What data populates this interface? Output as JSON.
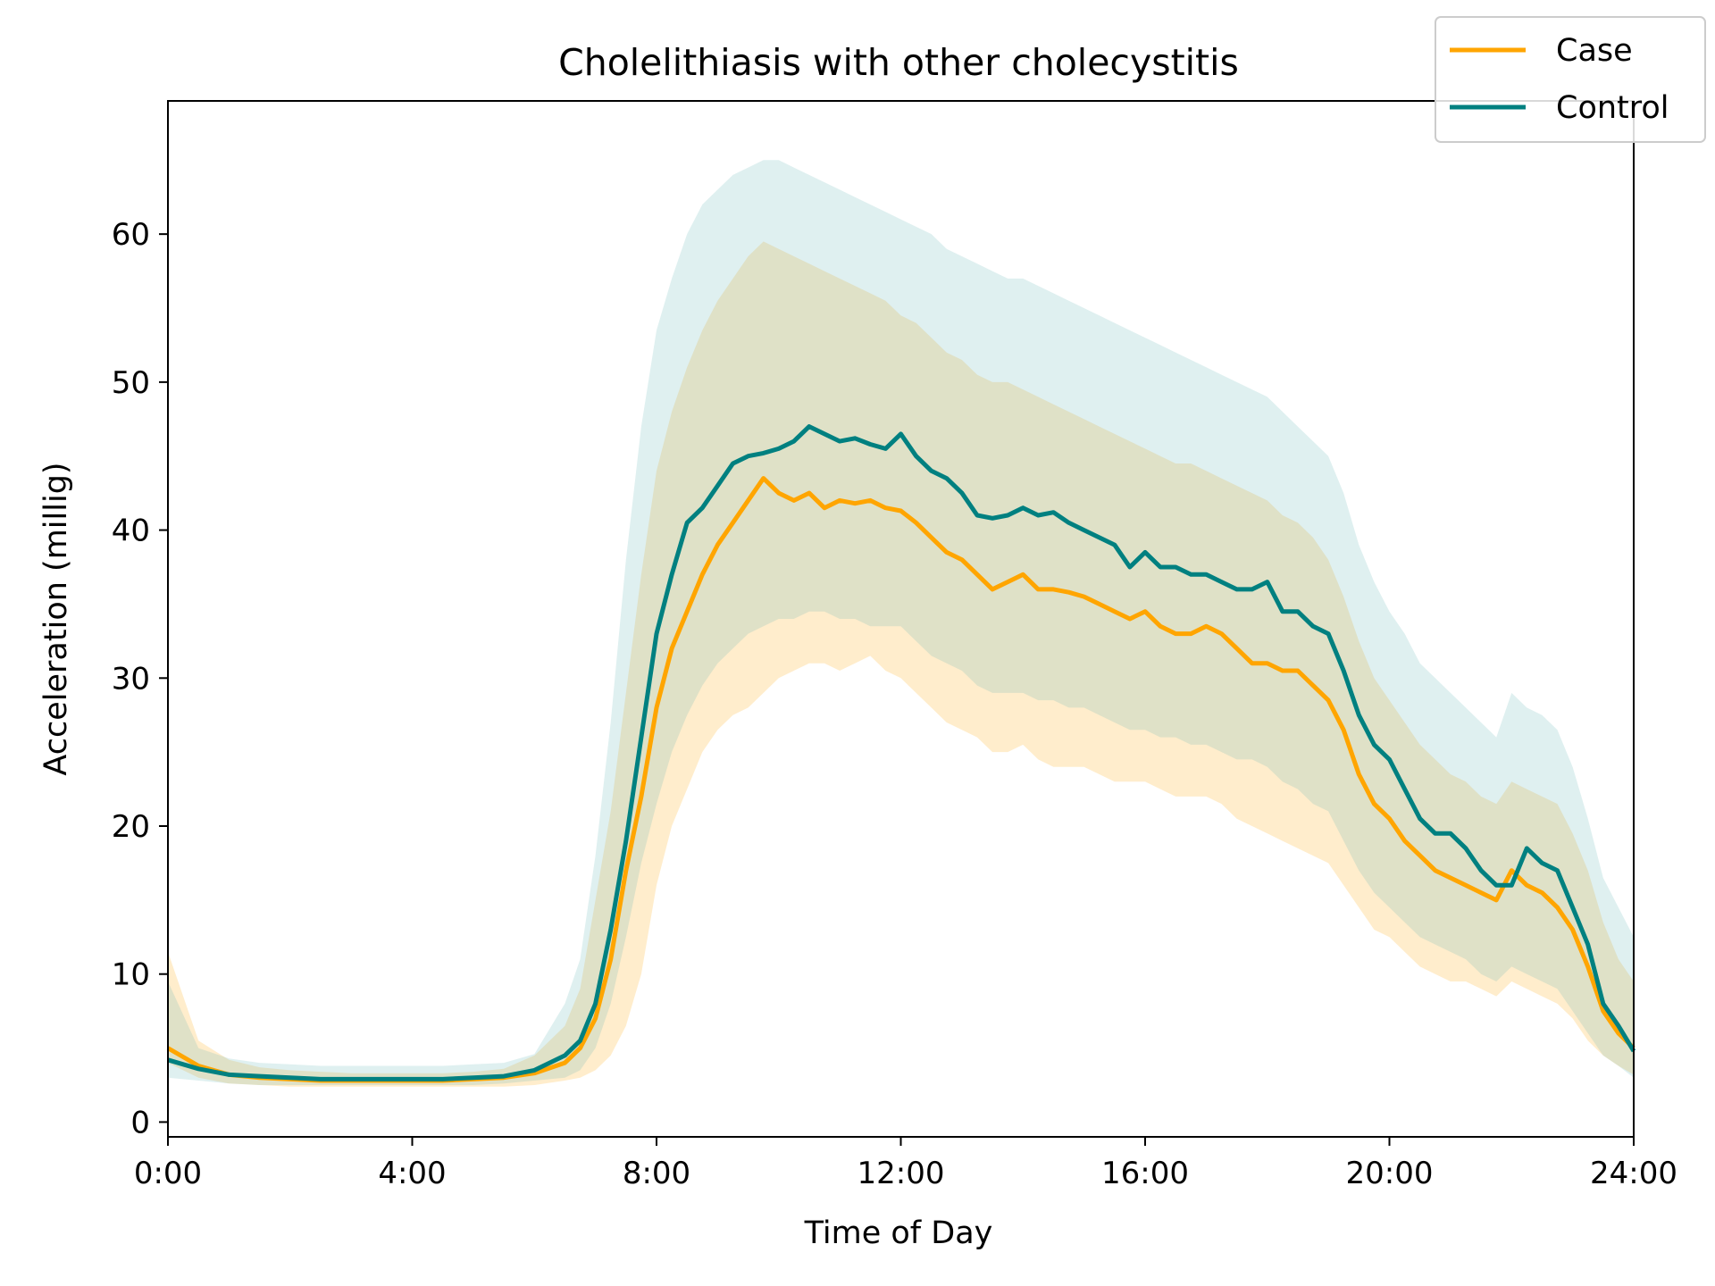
{
  "chart_data": {
    "type": "line",
    "title": "Cholelithiasis with other cholecystitis",
    "xlabel": "Time of Day",
    "ylabel": "Acceleration (millig)",
    "xlim": [
      0,
      24
    ],
    "ylim": [
      -1,
      69
    ],
    "x_ticks": [
      {
        "value": 0,
        "label": "0:00"
      },
      {
        "value": 4,
        "label": "4:00"
      },
      {
        "value": 8,
        "label": "8:00"
      },
      {
        "value": 12,
        "label": "12:00"
      },
      {
        "value": 16,
        "label": "16:00"
      },
      {
        "value": 20,
        "label": "20:00"
      },
      {
        "value": 24,
        "label": "24:00"
      }
    ],
    "y_ticks": [
      {
        "value": 0,
        "label": "0"
      },
      {
        "value": 10,
        "label": "10"
      },
      {
        "value": 20,
        "label": "20"
      },
      {
        "value": 30,
        "label": "30"
      },
      {
        "value": 40,
        "label": "40"
      },
      {
        "value": 50,
        "label": "50"
      },
      {
        "value": 60,
        "label": "60"
      }
    ],
    "grid": false,
    "legend_position": "top-right",
    "x": [
      0,
      0.5,
      1,
      1.5,
      2,
      2.5,
      3,
      3.5,
      4,
      4.5,
      5,
      5.5,
      6,
      6.5,
      6.75,
      7,
      7.25,
      7.5,
      7.75,
      8,
      8.25,
      8.5,
      8.75,
      9,
      9.25,
      9.5,
      9.75,
      10,
      10.25,
      10.5,
      10.75,
      11,
      11.25,
      11.5,
      11.75,
      12,
      12.25,
      12.5,
      12.75,
      13,
      13.25,
      13.5,
      13.75,
      14,
      14.25,
      14.5,
      14.75,
      15,
      15.25,
      15.5,
      15.75,
      16,
      16.25,
      16.5,
      16.75,
      17,
      17.25,
      17.5,
      17.75,
      18,
      18.25,
      18.5,
      18.75,
      19,
      19.25,
      19.5,
      19.75,
      20,
      20.25,
      20.5,
      20.75,
      21,
      21.25,
      21.5,
      21.75,
      22,
      22.25,
      22.5,
      22.75,
      23,
      23.25,
      23.5,
      23.75,
      24
    ],
    "series": [
      {
        "name": "Case",
        "color": "#ffa500",
        "band_color": "#ffa500",
        "values": [
          5.0,
          3.8,
          3.2,
          3.0,
          2.9,
          2.8,
          2.8,
          2.8,
          2.8,
          2.8,
          2.9,
          3.0,
          3.3,
          4.0,
          5.0,
          7.0,
          11.0,
          17.0,
          22.0,
          28.0,
          32.0,
          34.5,
          37.0,
          39.0,
          40.5,
          42.0,
          43.5,
          42.5,
          42.0,
          42.5,
          41.5,
          42.0,
          41.8,
          42.0,
          41.5,
          41.3,
          40.5,
          39.5,
          38.5,
          38.0,
          37.0,
          36.0,
          36.5,
          37.0,
          36.0,
          36.0,
          35.8,
          35.5,
          35.0,
          34.5,
          34.0,
          34.5,
          33.5,
          33.0,
          33.0,
          33.5,
          33.0,
          32.0,
          31.0,
          31.0,
          30.5,
          30.5,
          29.5,
          28.5,
          26.5,
          23.5,
          21.5,
          20.5,
          19.0,
          18.0,
          17.0,
          16.5,
          16.0,
          15.5,
          15.0,
          17.0,
          16.0,
          15.5,
          14.5,
          13.0,
          10.5,
          7.5,
          6.0,
          5.0
        ]
      },
      {
        "name": "Control",
        "color": "#008080",
        "band_color": "#5fb3b3",
        "values": [
          4.2,
          3.6,
          3.2,
          3.1,
          3.0,
          2.9,
          2.9,
          2.9,
          2.9,
          2.9,
          3.0,
          3.1,
          3.5,
          4.5,
          5.5,
          8.0,
          13.0,
          19.0,
          26.0,
          33.0,
          37.0,
          40.5,
          41.5,
          43.0,
          44.5,
          45.0,
          45.2,
          45.5,
          46.0,
          47.0,
          46.5,
          46.0,
          46.2,
          45.8,
          45.5,
          46.5,
          45.0,
          44.0,
          43.5,
          42.5,
          41.0,
          40.8,
          41.0,
          41.5,
          41.0,
          41.2,
          40.5,
          40.0,
          39.5,
          39.0,
          37.5,
          38.5,
          37.5,
          37.5,
          37.0,
          37.0,
          36.5,
          36.0,
          36.0,
          36.5,
          34.5,
          34.5,
          33.5,
          33.0,
          30.5,
          27.5,
          25.5,
          24.5,
          22.5,
          20.5,
          19.5,
          19.5,
          18.5,
          17.0,
          16.0,
          16.0,
          18.5,
          17.5,
          17.0,
          14.5,
          12.0,
          8.0,
          6.5,
          4.8
        ]
      }
    ],
    "bands": [
      {
        "series": "Case",
        "lower": [
          4.0,
          3.0,
          2.6,
          2.5,
          2.4,
          2.4,
          2.4,
          2.4,
          2.4,
          2.4,
          2.4,
          2.4,
          2.5,
          2.8,
          3.0,
          3.5,
          4.5,
          6.5,
          10.0,
          16.0,
          20.0,
          22.5,
          25.0,
          26.5,
          27.5,
          28.0,
          29.0,
          30.0,
          30.5,
          31.0,
          31.0,
          30.5,
          31.0,
          31.5,
          30.5,
          30.0,
          29.0,
          28.0,
          27.0,
          26.5,
          26.0,
          25.0,
          25.0,
          25.5,
          24.5,
          24.0,
          24.0,
          24.0,
          23.5,
          23.0,
          23.0,
          23.0,
          22.5,
          22.0,
          22.0,
          22.0,
          21.5,
          20.5,
          20.0,
          19.5,
          19.0,
          18.5,
          18.0,
          17.5,
          16.0,
          14.5,
          13.0,
          12.5,
          11.5,
          10.5,
          10.0,
          9.5,
          9.5,
          9.0,
          8.5,
          9.5,
          9.0,
          8.5,
          8.0,
          7.0,
          5.5,
          4.5,
          3.8,
          3.2
        ],
        "upper": [
          11.5,
          5.5,
          4.2,
          3.7,
          3.5,
          3.4,
          3.3,
          3.3,
          3.3,
          3.3,
          3.4,
          3.6,
          4.5,
          6.5,
          9.0,
          15.0,
          21.0,
          29.0,
          37.0,
          44.0,
          48.0,
          51.0,
          53.5,
          55.5,
          57.0,
          58.5,
          59.5,
          59.0,
          58.5,
          58.0,
          57.5,
          57.0,
          56.5,
          56.0,
          55.5,
          54.5,
          54.0,
          53.0,
          52.0,
          51.5,
          50.5,
          50.0,
          50.0,
          49.5,
          49.0,
          48.5,
          48.0,
          47.5,
          47.0,
          46.5,
          46.0,
          45.5,
          45.0,
          44.5,
          44.5,
          44.0,
          43.5,
          43.0,
          42.5,
          42.0,
          41.0,
          40.5,
          39.5,
          38.0,
          35.5,
          32.5,
          30.0,
          28.5,
          27.0,
          25.5,
          24.5,
          23.5,
          23.0,
          22.0,
          21.5,
          23.0,
          22.5,
          22.0,
          21.5,
          19.5,
          17.0,
          13.5,
          11.0,
          9.5
        ]
      },
      {
        "series": "Control",
        "lower": [
          3.0,
          2.8,
          2.6,
          2.5,
          2.5,
          2.5,
          2.5,
          2.5,
          2.5,
          2.5,
          2.5,
          2.6,
          2.8,
          3.0,
          3.5,
          5.0,
          8.0,
          12.5,
          17.5,
          21.5,
          25.0,
          27.5,
          29.5,
          31.0,
          32.0,
          33.0,
          33.5,
          34.0,
          34.0,
          34.5,
          34.5,
          34.0,
          34.0,
          33.5,
          33.5,
          33.5,
          32.5,
          31.5,
          31.0,
          30.5,
          29.5,
          29.0,
          29.0,
          29.0,
          28.5,
          28.5,
          28.0,
          28.0,
          27.5,
          27.0,
          26.5,
          26.5,
          26.0,
          26.0,
          25.5,
          25.5,
          25.0,
          24.5,
          24.5,
          24.0,
          23.0,
          22.5,
          21.5,
          21.0,
          19.0,
          17.0,
          15.5,
          14.5,
          13.5,
          12.5,
          12.0,
          11.5,
          11.0,
          10.0,
          9.5,
          10.5,
          10.0,
          9.5,
          9.0,
          7.5,
          6.0,
          4.5,
          3.8,
          3.0
        ],
        "upper": [
          9.5,
          5.0,
          4.3,
          4.0,
          3.9,
          3.8,
          3.8,
          3.8,
          3.8,
          3.8,
          3.9,
          4.0,
          4.6,
          8.0,
          11.0,
          18.0,
          27.0,
          38.0,
          47.0,
          53.5,
          57.0,
          60.0,
          62.0,
          63.0,
          64.0,
          64.5,
          65.0,
          65.0,
          64.5,
          64.0,
          63.5,
          63.0,
          62.5,
          62.0,
          61.5,
          61.0,
          60.5,
          60.0,
          59.0,
          58.5,
          58.0,
          57.5,
          57.0,
          57.0,
          56.5,
          56.0,
          55.5,
          55.0,
          54.5,
          54.0,
          53.5,
          53.0,
          52.5,
          52.0,
          51.5,
          51.0,
          50.5,
          50.0,
          49.5,
          49.0,
          48.0,
          47.0,
          46.0,
          45.0,
          42.5,
          39.0,
          36.5,
          34.5,
          33.0,
          31.0,
          30.0,
          29.0,
          28.0,
          27.0,
          26.0,
          29.0,
          28.0,
          27.5,
          26.5,
          24.0,
          20.5,
          16.5,
          14.5,
          12.5
        ]
      }
    ]
  }
}
